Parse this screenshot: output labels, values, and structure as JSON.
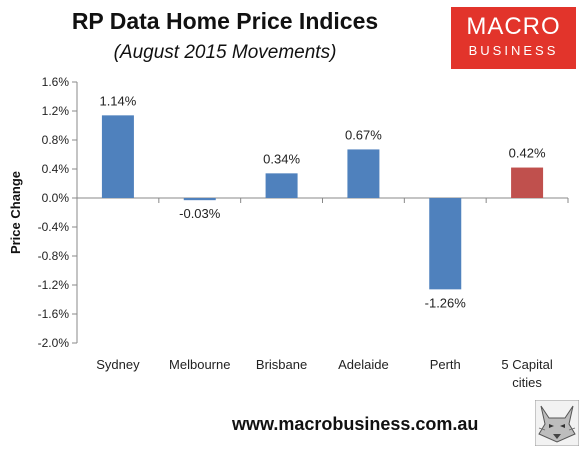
{
  "header": {
    "title": "RP Data Home Price Indices",
    "subtitle": "(August 2015 Movements)"
  },
  "logo": {
    "line1": "MACRO",
    "line2": "BUSINESS"
  },
  "footer": {
    "url": "www.macrobusiness.com.au"
  },
  "colors": {
    "bar": "#4f81bd",
    "highlight": "#c0504d",
    "logo": "#e2342b"
  },
  "icons": {
    "wolf": "wolf-logo-icon"
  },
  "chart_data": {
    "type": "bar",
    "title": "",
    "xlabel": "",
    "ylabel": "Price Change",
    "categories": [
      "Sydney",
      "Melbourne",
      "Brisbane",
      "Adelaide",
      "Perth",
      "5 Capital cities"
    ],
    "values": [
      1.14,
      -0.03,
      0.34,
      0.67,
      -1.26,
      0.42
    ],
    "value_labels": [
      "1.14%",
      "-0.03%",
      "0.34%",
      "0.67%",
      "-1.26%",
      "0.42%"
    ],
    "ylim": [
      -2.0,
      1.6
    ],
    "yticks": [
      1.6,
      1.2,
      0.8,
      0.4,
      0.0,
      -0.4,
      -0.8,
      -1.2,
      -1.6,
      -2.0
    ],
    "ytick_labels": [
      "1.6%",
      "1.2%",
      "0.8%",
      "0.4%",
      "0.0%",
      "-0.4%",
      "-0.8%",
      "-1.2%",
      "-1.6%",
      "-2.0%"
    ],
    "highlight_category": "5 Capital cities",
    "grid": false,
    "legend": "none"
  }
}
